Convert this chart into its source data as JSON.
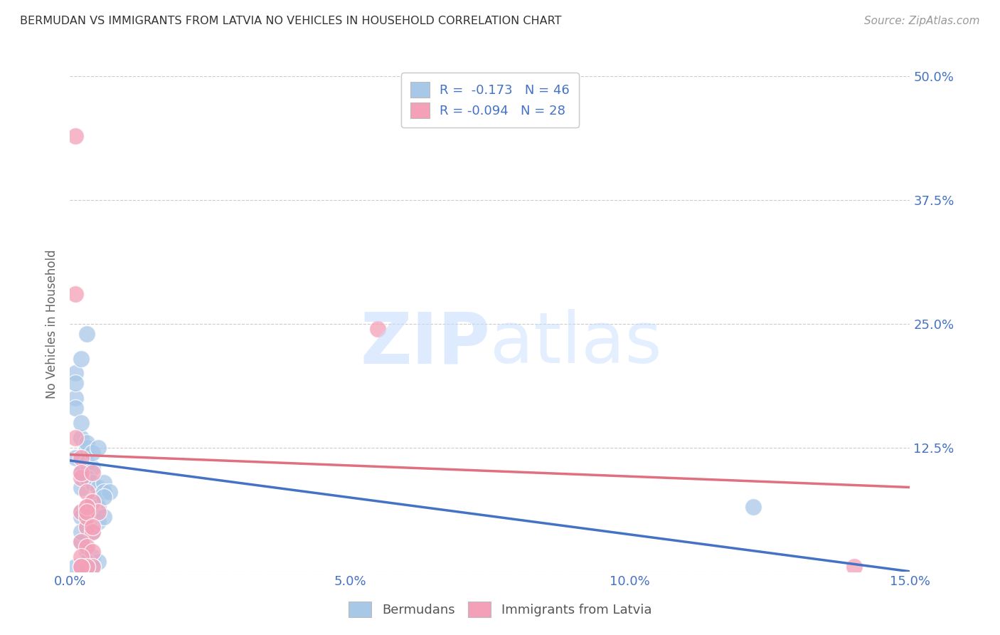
{
  "title": "BERMUDAN VS IMMIGRANTS FROM LATVIA NO VEHICLES IN HOUSEHOLD CORRELATION CHART",
  "source": "Source: ZipAtlas.com",
  "ylabel": "No Vehicles in Household",
  "xlim": [
    0.0,
    0.15
  ],
  "ylim": [
    0.0,
    0.5
  ],
  "xticks": [
    0.0,
    0.05,
    0.1,
    0.15
  ],
  "yticks": [
    0.0,
    0.125,
    0.25,
    0.375,
    0.5
  ],
  "xticklabels": [
    "0.0%",
    "5.0%",
    "10.0%",
    "15.0%"
  ],
  "yticklabels_right": [
    "",
    "12.5%",
    "25.0%",
    "37.5%",
    "50.0%"
  ],
  "legend_r_blue": "R =  -0.173",
  "legend_n_blue": "N = 46",
  "legend_r_pink": "R = -0.094",
  "legend_n_pink": "N = 28",
  "blue_color": "#A8C8E8",
  "pink_color": "#F4A0B8",
  "blue_line_color": "#4472C4",
  "pink_line_color": "#E07080",
  "bermudans_x": [
    0.002,
    0.001,
    0.001,
    0.002,
    0.003,
    0.001,
    0.001,
    0.002,
    0.001,
    0.002,
    0.003,
    0.002,
    0.003,
    0.003,
    0.004,
    0.003,
    0.004,
    0.005,
    0.004,
    0.005,
    0.006,
    0.005,
    0.006,
    0.007,
    0.004,
    0.005,
    0.006,
    0.002,
    0.003,
    0.004,
    0.003,
    0.004,
    0.005,
    0.006,
    0.002,
    0.003,
    0.004,
    0.005,
    0.001,
    0.002,
    0.003,
    0.004,
    0.003,
    0.002,
    0.122,
    0.002
  ],
  "bermudans_y": [
    0.135,
    0.2,
    0.175,
    0.215,
    0.24,
    0.19,
    0.165,
    0.15,
    0.115,
    0.1,
    0.125,
    0.085,
    0.13,
    0.11,
    0.105,
    0.095,
    0.12,
    0.125,
    0.09,
    0.085,
    0.09,
    0.075,
    0.08,
    0.08,
    0.07,
    0.065,
    0.075,
    0.06,
    0.055,
    0.06,
    0.045,
    0.04,
    0.05,
    0.055,
    0.03,
    0.02,
    0.015,
    0.01,
    0.005,
    0.005,
    0.01,
    0.005,
    0.005,
    0.055,
    0.065,
    0.04
  ],
  "latvia_x": [
    0.001,
    0.001,
    0.002,
    0.001,
    0.002,
    0.003,
    0.002,
    0.003,
    0.002,
    0.003,
    0.004,
    0.003,
    0.004,
    0.005,
    0.004,
    0.003,
    0.002,
    0.003,
    0.004,
    0.002,
    0.003,
    0.004,
    0.055,
    0.004,
    0.003,
    0.002,
    0.14,
    0.002
  ],
  "latvia_y": [
    0.44,
    0.28,
    0.115,
    0.135,
    0.095,
    0.08,
    0.1,
    0.065,
    0.06,
    0.045,
    0.07,
    0.055,
    0.04,
    0.06,
    0.1,
    0.065,
    0.03,
    0.025,
    0.02,
    0.015,
    0.06,
    0.045,
    0.245,
    0.005,
    0.005,
    0.005,
    0.005,
    0.005
  ],
  "blue_regline_x": [
    0.0,
    0.15
  ],
  "blue_regline_y": [
    0.112,
    0.0
  ],
  "pink_regline_x": [
    0.0,
    0.15
  ],
  "pink_regline_y": [
    0.118,
    0.085
  ]
}
